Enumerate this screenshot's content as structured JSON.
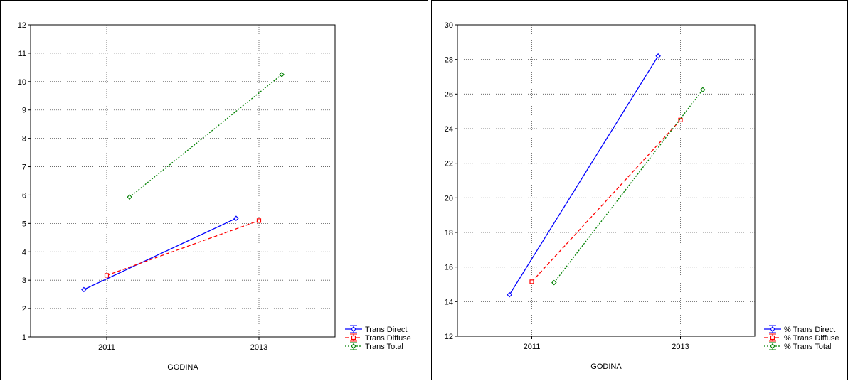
{
  "chart_data": [
    {
      "type": "line",
      "xlabel": "GODINA",
      "ylabel": "",
      "ylim": [
        1,
        12
      ],
      "yticks": [
        1,
        2,
        3,
        4,
        5,
        6,
        7,
        8,
        9,
        10,
        11,
        12
      ],
      "categories": [
        "2011",
        "2013"
      ],
      "grid": true,
      "legend": "bottom-right",
      "series": [
        {
          "name": "Trans Direct",
          "color": "#0000ff",
          "marker": "diamond",
          "dash": "solid",
          "x": [
            2010.7,
            2012.7
          ],
          "values": [
            2.67,
            5.18
          ]
        },
        {
          "name": "Trans Diffuse",
          "color": "#ff0000",
          "marker": "square",
          "dash": "dashed",
          "x": [
            2011.0,
            2013.0
          ],
          "values": [
            3.17,
            5.1
          ]
        },
        {
          "name": "Trans Total",
          "color": "#008000",
          "marker": "diamond",
          "dash": "dotted",
          "x": [
            2011.3,
            2013.3
          ],
          "values": [
            5.93,
            10.25
          ]
        }
      ]
    },
    {
      "type": "line",
      "xlabel": "GODINA",
      "ylabel": "",
      "ylim": [
        12,
        30
      ],
      "yticks": [
        12,
        14,
        16,
        18,
        20,
        22,
        24,
        26,
        28,
        30
      ],
      "categories": [
        "2011",
        "2013"
      ],
      "grid": true,
      "legend": "bottom-right",
      "series": [
        {
          "name": "% Trans Direct",
          "color": "#0000ff",
          "marker": "diamond",
          "dash": "solid",
          "x": [
            2010.7,
            2012.7
          ],
          "values": [
            14.4,
            28.2
          ]
        },
        {
          "name": "% Trans Diffuse",
          "color": "#ff0000",
          "marker": "square",
          "dash": "dashed",
          "x": [
            2011.0,
            2013.0
          ],
          "values": [
            15.15,
            24.5
          ]
        },
        {
          "name": "% Trans Total",
          "color": "#008000",
          "marker": "diamond",
          "dash": "dotted",
          "x": [
            2011.3,
            2013.3
          ],
          "values": [
            15.1,
            26.25
          ]
        }
      ]
    }
  ]
}
